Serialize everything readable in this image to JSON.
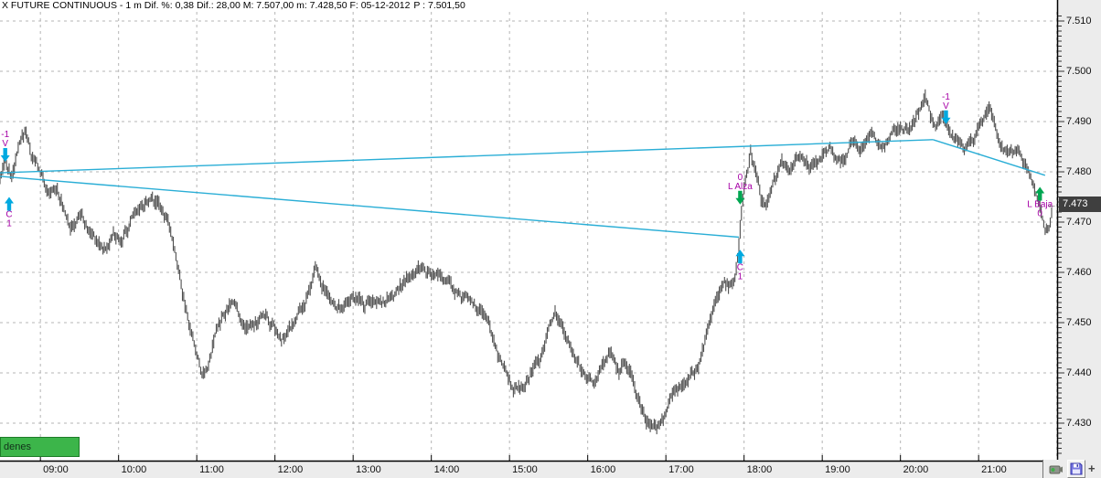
{
  "window": {
    "title_main": "X FUTURE CONTINUOUS - 1 m  Dif. %: 0,38  Dif.: 28,00  M: 7.507,00  m: 7.428,50  F: 05-12-2012",
    "title_price": "P : 7.501,50"
  },
  "toolbar": {
    "orders_label": "denes"
  },
  "axis": {
    "last_price_label": "7.473",
    "last_price_arrow": "←"
  },
  "corner_icons": [
    "camera-icon",
    "save-icon",
    "add-icon"
  ],
  "add_icon_glyph": "+",
  "chart_data": {
    "type": "line",
    "subtype": "1-minute OHLC bar chart",
    "symbol": "X FUTURE CONTINUOUS",
    "interval": "1 m",
    "stats": {
      "dif_pct": "0,38",
      "dif": "28,00",
      "M": "7.507,00",
      "m": "7.428,50",
      "F": "05-12-2012",
      "P": "7.501,50"
    },
    "x_range": [
      "08:29",
      "22:00"
    ],
    "ylim": [
      7422,
      7512
    ],
    "grid": true,
    "x_labels": [
      "09:00",
      "10:00",
      "11:00",
      "12:00",
      "13:00",
      "14:00",
      "15:00",
      "16:00",
      "17:00",
      "18:00",
      "19:00",
      "20:00",
      "21:00"
    ],
    "x_gridlines_extra": [
      "22:00"
    ],
    "y_labels": [
      "7.510",
      "7.500",
      "7.490",
      "7.480",
      "7.470",
      "7.460",
      "7.450",
      "7.440",
      "7.430"
    ],
    "last_price": 7473.5,
    "price_points": [
      [
        "08:29",
        7478.5
      ],
      [
        "08:33",
        7480.5
      ],
      [
        "08:38",
        7478
      ],
      [
        "08:43",
        7483
      ],
      [
        "08:49",
        7486.5
      ],
      [
        "08:53",
        7482
      ],
      [
        "08:57",
        7480
      ],
      [
        "09:01",
        7477.5
      ],
      [
        "09:07",
        7473.5
      ],
      [
        "09:13",
        7475.5
      ],
      [
        "09:19",
        7471.5
      ],
      [
        "09:25",
        7470
      ],
      [
        "09:31",
        7472.5
      ],
      [
        "09:37",
        7469
      ],
      [
        "09:44",
        7467.5
      ],
      [
        "09:50",
        7466.5
      ],
      [
        "09:56",
        7469.5
      ],
      [
        "10:02",
        7468
      ],
      [
        "10:09",
        7471
      ],
      [
        "10:16",
        7474
      ],
      [
        "10:24",
        7476.5
      ],
      [
        "10:31",
        7476
      ],
      [
        "10:37",
        7472
      ],
      [
        "10:42",
        7468
      ],
      [
        "10:47",
        7461
      ],
      [
        "10:53",
        7452
      ],
      [
        "10:59",
        7445.5
      ],
      [
        "11:04",
        7440.5
      ],
      [
        "11:09",
        7443.5
      ],
      [
        "11:15",
        7449
      ],
      [
        "11:21",
        7452.5
      ],
      [
        "11:29",
        7455
      ],
      [
        "11:37",
        7451
      ],
      [
        "11:45",
        7452
      ],
      [
        "11:53",
        7453
      ],
      [
        "12:00",
        7449.5
      ],
      [
        "12:05",
        7446.5
      ],
      [
        "12:13",
        7448
      ],
      [
        "12:21",
        7451.5
      ],
      [
        "12:28",
        7455
      ],
      [
        "12:31",
        7459.5
      ],
      [
        "12:35",
        7456
      ],
      [
        "12:42",
        7452.5
      ],
      [
        "12:52",
        7451.5
      ],
      [
        "13:00",
        7454.5
      ],
      [
        "13:08",
        7451.5
      ],
      [
        "13:16",
        7452.5
      ],
      [
        "13:24",
        7454
      ],
      [
        "13:32",
        7456
      ],
      [
        "13:42",
        7458
      ],
      [
        "13:52",
        7460.5
      ],
      [
        "14:00",
        7459
      ],
      [
        "14:10",
        7456.5
      ],
      [
        "14:20",
        7454.5
      ],
      [
        "14:30",
        7452.5
      ],
      [
        "14:40",
        7450
      ],
      [
        "14:48",
        7446
      ],
      [
        "14:56",
        7440
      ],
      [
        "15:03",
        7436
      ],
      [
        "15:09",
        7438.5
      ],
      [
        "15:16",
        7441.5
      ],
      [
        "15:24",
        7445
      ],
      [
        "15:31",
        7452
      ],
      [
        "15:35",
        7454
      ],
      [
        "15:42",
        7449
      ],
      [
        "15:50",
        7445
      ],
      [
        "15:58",
        7441.5
      ],
      [
        "16:04",
        7439.5
      ],
      [
        "16:11",
        7443
      ],
      [
        "16:18",
        7445.5
      ],
      [
        "16:24",
        7441.5
      ],
      [
        "16:29",
        7444
      ],
      [
        "16:35",
        7439
      ],
      [
        "16:41",
        7434.5
      ],
      [
        "16:48",
        7431
      ],
      [
        "16:53",
        7429.5
      ],
      [
        "16:58",
        7432
      ],
      [
        "17:04",
        7436.5
      ],
      [
        "17:11",
        7439.5
      ],
      [
        "17:18",
        7441
      ],
      [
        "17:24",
        7442
      ],
      [
        "17:29",
        7447
      ],
      [
        "17:34",
        7452.5
      ],
      [
        "17:39",
        7457
      ],
      [
        "17:44",
        7460
      ],
      [
        "17:49",
        7459
      ],
      [
        "17:53",
        7460.5
      ],
      [
        "17:56",
        7466.5
      ],
      [
        "17:58",
        7473
      ],
      [
        "18:01",
        7478
      ],
      [
        "18:05",
        7483
      ],
      [
        "18:09",
        7478.5
      ],
      [
        "18:13",
        7472.5
      ],
      [
        "18:18",
        7474.5
      ],
      [
        "18:23",
        7477
      ],
      [
        "18:29",
        7480
      ],
      [
        "18:35",
        7478
      ],
      [
        "18:42",
        7481.5
      ],
      [
        "18:50",
        7479
      ],
      [
        "18:58",
        7480.5
      ],
      [
        "19:06",
        7483
      ],
      [
        "19:14",
        7480.5
      ],
      [
        "19:22",
        7484.5
      ],
      [
        "19:30",
        7483
      ],
      [
        "19:38",
        7485.5
      ],
      [
        "19:46",
        7483.5
      ],
      [
        "19:54",
        7486
      ],
      [
        "20:02",
        7486.5
      ],
      [
        "20:10",
        7488.5
      ],
      [
        "20:16",
        7490.5
      ],
      [
        "20:19",
        7493.5
      ],
      [
        "20:23",
        7489.5
      ],
      [
        "20:28",
        7487.5
      ],
      [
        "20:33",
        7489.5
      ],
      [
        "20:38",
        7487
      ],
      [
        "20:44",
        7485.5
      ],
      [
        "20:50",
        7484.5
      ],
      [
        "20:56",
        7486
      ],
      [
        "21:02",
        7489.5
      ],
      [
        "21:08",
        7492
      ],
      [
        "21:13",
        7489.5
      ],
      [
        "21:19",
        7485.5
      ],
      [
        "21:25",
        7486.5
      ],
      [
        "21:31",
        7485
      ],
      [
        "21:37",
        7482.5
      ],
      [
        "21:43",
        7478
      ],
      [
        "21:48",
        7474.5
      ],
      [
        "21:51",
        7470.5
      ],
      [
        "21:54",
        7471
      ],
      [
        "21:56",
        7473
      ]
    ],
    "trend_lines": [
      {
        "from": [
          "08:29",
          7479.8
        ],
        "to": [
          "20:25",
          7486.4
        ]
      },
      {
        "from": [
          "20:25",
          7486.4
        ],
        "to": [
          "21:51",
          7479.3
        ]
      },
      {
        "from": [
          "08:29",
          7479.1
        ],
        "to": [
          "17:56",
          7467.0
        ]
      }
    ],
    "markers": [
      {
        "t": "08:33",
        "price": 7482,
        "dir": "down",
        "arrow": "cyan",
        "labels": [
          "-1",
          "V"
        ],
        "label_pos": "above"
      },
      {
        "t": "08:36",
        "price": 7475,
        "dir": "up",
        "arrow": "cyan",
        "labels": [
          "C",
          "1"
        ],
        "label_pos": "below"
      },
      {
        "t": "17:57",
        "price": 7473.5,
        "dir": "down",
        "arrow": "green",
        "labels": [
          "0",
          "L Alza"
        ],
        "label_pos": "above"
      },
      {
        "t": "17:57",
        "price": 7464.5,
        "dir": "up",
        "arrow": "cyan",
        "labels": [
          "C",
          "1"
        ],
        "label_pos": "below"
      },
      {
        "t": "20:35",
        "price": 7489.5,
        "dir": "down",
        "arrow": "cyan",
        "labels": [
          "-1",
          "V"
        ],
        "label_pos": "above"
      },
      {
        "t": "21:47",
        "price": 7477,
        "dir": "up",
        "arrow": "green",
        "labels": [
          "L Baja",
          "0"
        ],
        "label_pos": "below"
      }
    ],
    "colors": {
      "bar": "#4f4f4f",
      "trend": "#2aaed6",
      "cyan_arrow": "#00a9e0",
      "green_arrow": "#00a651",
      "marker_label": "#a602a6",
      "grid": "#b5b5b5",
      "price_red": "#dd0000",
      "last_price_bg": "#3f3f3f",
      "button_green": "#3cb54a"
    }
  }
}
